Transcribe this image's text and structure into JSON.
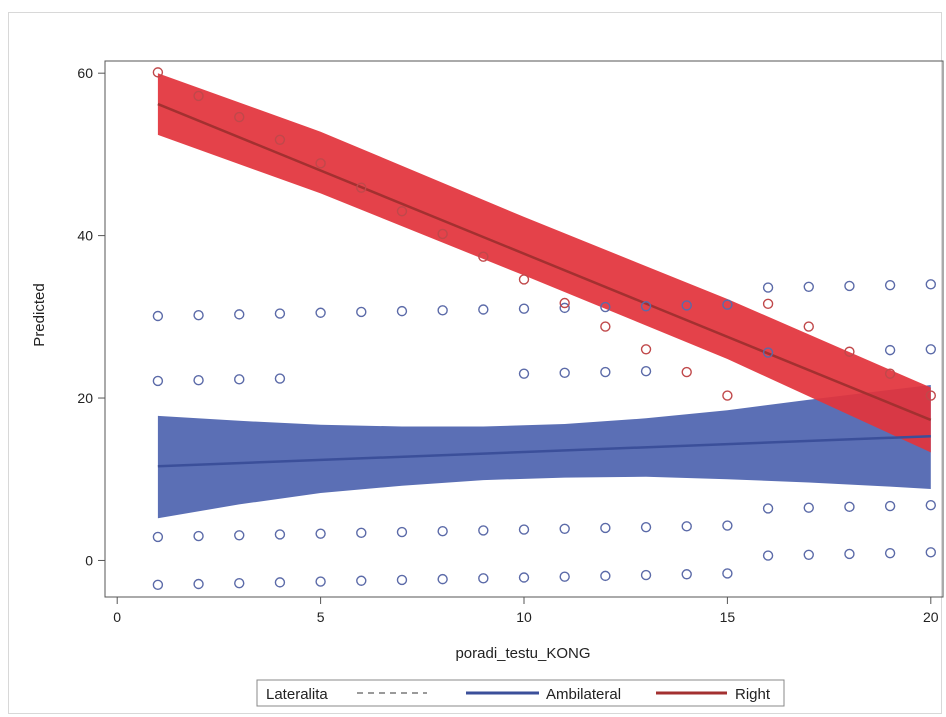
{
  "chart_data": {
    "type": "scatter",
    "xlabel": "poradi_testu_KONG",
    "ylabel": "Predicted",
    "xlim": [
      -0.3,
      20.3
    ],
    "ylim": [
      -4.5,
      61.5
    ],
    "xticks": [
      0,
      5,
      10,
      15,
      20
    ],
    "yticks": [
      0,
      20,
      40,
      60
    ],
    "grid": false,
    "legend": {
      "position": "bottom",
      "title": "Lateralita",
      "entries": [
        "Ambilateral",
        "Right"
      ]
    },
    "colors": {
      "ambilateral_line": "#3b4f9a",
      "ambilateral_band": "#5b6fb5",
      "ambilateral_marker": "#5b6aa8",
      "right_line": "#a33030",
      "right_band": "#e2343c",
      "right_marker": "#c0484a",
      "dashed_line": "#9a9a9a"
    },
    "series": [
      {
        "name": "Ambilateral",
        "fit": {
          "x": [
            1,
            20
          ],
          "y": [
            11.6,
            15.3
          ]
        },
        "band": {
          "x": [
            1,
            3,
            5,
            7,
            9,
            11,
            13,
            15,
            17,
            19,
            20
          ],
          "lower": [
            5.2,
            6.9,
            8.3,
            9.2,
            9.9,
            10.2,
            10.3,
            10.0,
            9.6,
            9.1,
            8.8
          ],
          "upper": [
            17.8,
            17.2,
            16.7,
            16.5,
            16.5,
            16.8,
            17.5,
            18.5,
            19.8,
            21.0,
            21.6
          ]
        },
        "points": [
          {
            "x": 1,
            "y": 30.1
          },
          {
            "x": 2,
            "y": 30.2
          },
          {
            "x": 3,
            "y": 30.3
          },
          {
            "x": 4,
            "y": 30.4
          },
          {
            "x": 5,
            "y": 30.5
          },
          {
            "x": 6,
            "y": 30.6
          },
          {
            "x": 7,
            "y": 30.7
          },
          {
            "x": 8,
            "y": 30.8
          },
          {
            "x": 9,
            "y": 30.9
          },
          {
            "x": 10,
            "y": 31.0
          },
          {
            "x": 11,
            "y": 31.1
          },
          {
            "x": 12,
            "y": 31.2
          },
          {
            "x": 13,
            "y": 31.3
          },
          {
            "x": 14,
            "y": 31.4
          },
          {
            "x": 15,
            "y": 31.5
          },
          {
            "x": 16,
            "y": 33.6
          },
          {
            "x": 17,
            "y": 33.7
          },
          {
            "x": 18,
            "y": 33.8
          },
          {
            "x": 19,
            "y": 33.9
          },
          {
            "x": 20,
            "y": 34.0
          },
          {
            "x": 1,
            "y": 22.1
          },
          {
            "x": 2,
            "y": 22.2
          },
          {
            "x": 3,
            "y": 22.3
          },
          {
            "x": 4,
            "y": 22.4
          },
          {
            "x": 10,
            "y": 23.0
          },
          {
            "x": 11,
            "y": 23.1
          },
          {
            "x": 12,
            "y": 23.2
          },
          {
            "x": 13,
            "y": 23.3
          },
          {
            "x": 16,
            "y": 25.6
          },
          {
            "x": 19,
            "y": 25.9
          },
          {
            "x": 20,
            "y": 26.0
          },
          {
            "x": 1,
            "y": 2.9
          },
          {
            "x": 2,
            "y": 3.0
          },
          {
            "x": 3,
            "y": 3.1
          },
          {
            "x": 4,
            "y": 3.2
          },
          {
            "x": 5,
            "y": 3.3
          },
          {
            "x": 6,
            "y": 3.4
          },
          {
            "x": 7,
            "y": 3.5
          },
          {
            "x": 8,
            "y": 3.6
          },
          {
            "x": 9,
            "y": 3.7
          },
          {
            "x": 10,
            "y": 3.8
          },
          {
            "x": 11,
            "y": 3.9
          },
          {
            "x": 12,
            "y": 4.0
          },
          {
            "x": 13,
            "y": 4.1
          },
          {
            "x": 14,
            "y": 4.2
          },
          {
            "x": 15,
            "y": 4.3
          },
          {
            "x": 16,
            "y": 6.4
          },
          {
            "x": 17,
            "y": 6.5
          },
          {
            "x": 18,
            "y": 6.6
          },
          {
            "x": 19,
            "y": 6.7
          },
          {
            "x": 20,
            "y": 6.8
          },
          {
            "x": 1,
            "y": -3.0
          },
          {
            "x": 2,
            "y": -2.9
          },
          {
            "x": 3,
            "y": -2.8
          },
          {
            "x": 4,
            "y": -2.7
          },
          {
            "x": 5,
            "y": -2.6
          },
          {
            "x": 6,
            "y": -2.5
          },
          {
            "x": 7,
            "y": -2.4
          },
          {
            "x": 8,
            "y": -2.3
          },
          {
            "x": 9,
            "y": -2.2
          },
          {
            "x": 10,
            "y": -2.1
          },
          {
            "x": 11,
            "y": -2.0
          },
          {
            "x": 12,
            "y": -1.9
          },
          {
            "x": 13,
            "y": -1.8
          },
          {
            "x": 14,
            "y": -1.7
          },
          {
            "x": 15,
            "y": -1.6
          },
          {
            "x": 16,
            "y": 0.6
          },
          {
            "x": 17,
            "y": 0.7
          },
          {
            "x": 18,
            "y": 0.8
          },
          {
            "x": 19,
            "y": 0.9
          },
          {
            "x": 20,
            "y": 1.0
          }
        ]
      },
      {
        "name": "Right",
        "fit": {
          "x": [
            1,
            20
          ],
          "y": [
            56.2,
            17.3
          ]
        },
        "band": {
          "x": [
            1,
            5,
            10,
            15,
            20
          ],
          "lower": [
            52.4,
            45.2,
            35.1,
            24.8,
            13.3
          ],
          "upper": [
            60.0,
            52.8,
            42.3,
            32.2,
            21.3
          ]
        },
        "points": [
          {
            "x": 1,
            "y": 60.1
          },
          {
            "x": 2,
            "y": 57.2
          },
          {
            "x": 3,
            "y": 54.6
          },
          {
            "x": 4,
            "y": 51.8
          },
          {
            "x": 5,
            "y": 48.9
          },
          {
            "x": 6,
            "y": 45.9
          },
          {
            "x": 7,
            "y": 43.0
          },
          {
            "x": 8,
            "y": 40.2
          },
          {
            "x": 9,
            "y": 37.4
          },
          {
            "x": 10,
            "y": 34.6
          },
          {
            "x": 11,
            "y": 31.7
          },
          {
            "x": 12,
            "y": 28.8
          },
          {
            "x": 13,
            "y": 26.0
          },
          {
            "x": 14,
            "y": 23.2
          },
          {
            "x": 15,
            "y": 20.3
          },
          {
            "x": 16,
            "y": 31.6
          },
          {
            "x": 17,
            "y": 28.8
          },
          {
            "x": 18,
            "y": 25.7
          },
          {
            "x": 19,
            "y": 23.0
          },
          {
            "x": 20,
            "y": 20.3
          }
        ]
      }
    ]
  }
}
